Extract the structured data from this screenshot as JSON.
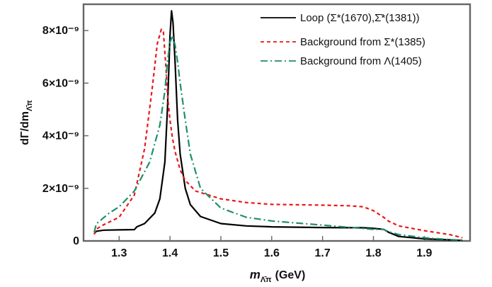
{
  "chart_data": {
    "type": "line",
    "xlabel": "m",
    "xlabel_subscript": "Λ̄π",
    "xlabel_unit": "(GeV)",
    "ylabel": "dΓ/dm",
    "ylabel_subscript": "Λ̄π",
    "xlim": [
      1.23,
      1.99
    ],
    "ylim": [
      0,
      9e-09
    ],
    "x_ticks": [
      1.3,
      1.4,
      1.5,
      1.6,
      1.7,
      1.8,
      1.9
    ],
    "x_tick_labels": [
      "1.3",
      "1.4",
      "1.5",
      "1.6",
      "1.7",
      "1.8",
      "1.9"
    ],
    "y_ticks": [
      0,
      2e-09,
      4e-09,
      6e-09,
      8e-09
    ],
    "y_tick_labels": [
      "0",
      "2×10⁻⁹",
      "4×10⁻⁹",
      "6×10⁻⁹",
      "8×10⁻⁹"
    ],
    "grid": false,
    "legend_position": "top-right",
    "series": [
      {
        "name": "Loop (Σ*(1670),Σ̄*(1381))",
        "color": "#000000",
        "dash": "solid",
        "x": [
          1.251,
          1.255,
          1.27,
          1.3,
          1.33,
          1.335,
          1.35,
          1.37,
          1.38,
          1.39,
          1.395,
          1.4,
          1.403,
          1.406,
          1.41,
          1.415,
          1.42,
          1.43,
          1.44,
          1.46,
          1.5,
          1.55,
          1.6,
          1.7,
          1.78,
          1.8,
          1.82,
          1.83,
          1.85,
          1.9,
          1.95,
          1.975
        ],
        "y": [
          2.7e-10,
          3.7e-10,
          4.1e-10,
          4.2e-10,
          4.3e-10,
          5.4e-10,
          6.6e-10,
          1.06e-09,
          1.6e-09,
          3e-09,
          5e-09,
          7.8e-09,
          8.75e-09,
          8.3e-09,
          6.8e-09,
          4.6e-09,
          3.3e-09,
          2e-09,
          1.38e-09,
          9.3e-10,
          6.6e-10,
          5.7e-10,
          5.35e-10,
          5.1e-10,
          5e-10,
          4.8e-10,
          4.4e-10,
          3.3e-10,
          1.7e-10,
          8e-11,
          4e-11,
          2e-11
        ]
      },
      {
        "name": "Background from Σ*(1385)",
        "color": "#e8191b",
        "dash": "dashed",
        "x": [
          1.251,
          1.255,
          1.27,
          1.3,
          1.33,
          1.35,
          1.365,
          1.375,
          1.383,
          1.387,
          1.392,
          1.395,
          1.4,
          1.405,
          1.41,
          1.42,
          1.43,
          1.45,
          1.5,
          1.55,
          1.6,
          1.7,
          1.75,
          1.78,
          1.8,
          1.82,
          1.83,
          1.85,
          1.9,
          1.95,
          1.975
        ],
        "y": [
          2.5e-10,
          4.5e-10,
          6.2e-10,
          9e-10,
          1.75e-09,
          3.5e-09,
          5.8e-09,
          7.5e-09,
          8.05e-09,
          7.95e-09,
          6.6e-09,
          5.6e-09,
          4.6e-09,
          3.9e-09,
          3.4e-09,
          2.7e-09,
          2.3e-09,
          1.9e-09,
          1.6e-09,
          1.46e-09,
          1.39e-09,
          1.36e-09,
          1.34e-09,
          1.3e-09,
          1.15e-09,
          9e-10,
          7.5e-10,
          5.7e-10,
          3.9e-10,
          2.4e-10,
          1.2e-10
        ]
      },
      {
        "name": "Background from Λ(1405)",
        "color": "#1f8f68",
        "dash": "dashdot",
        "x": [
          1.251,
          1.255,
          1.28,
          1.3,
          1.33,
          1.36,
          1.38,
          1.39,
          1.395,
          1.4,
          1.405,
          1.41,
          1.415,
          1.42,
          1.43,
          1.44,
          1.46,
          1.5,
          1.55,
          1.6,
          1.7,
          1.8,
          1.82,
          1.83,
          1.85,
          1.9,
          1.95,
          1.975
        ],
        "y": [
          3.3e-10,
          6.5e-10,
          1.05e-09,
          1.3e-09,
          1.9e-09,
          3e-09,
          4.4e-09,
          5.7e-09,
          6.8e-09,
          7.55e-09,
          7.8e-09,
          7.45e-09,
          6.8e-09,
          6e-09,
          4.6e-09,
          3.3e-09,
          2e-09,
          1.25e-09,
          9e-10,
          7.6e-10,
          6e-10,
          4.4e-10,
          4.4e-10,
          3.5e-10,
          2.4e-10,
          1.2e-10,
          5e-11,
          3e-11
        ]
      }
    ]
  }
}
